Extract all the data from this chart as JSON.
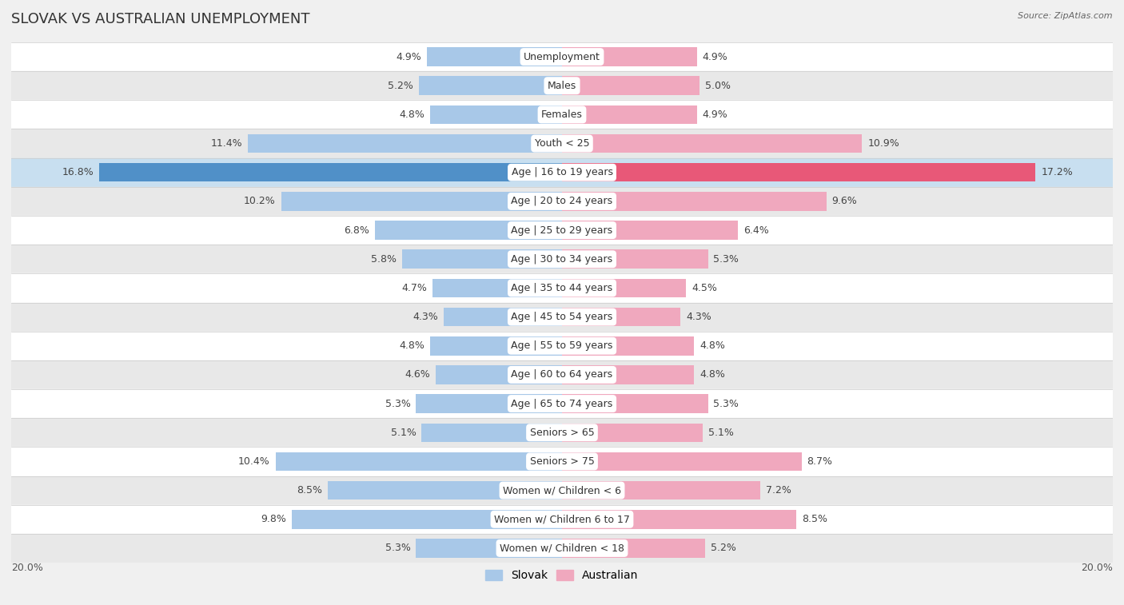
{
  "title": "SLOVAK VS AUSTRALIAN UNEMPLOYMENT",
  "source": "Source: ZipAtlas.com",
  "categories": [
    "Unemployment",
    "Males",
    "Females",
    "Youth < 25",
    "Age | 16 to 19 years",
    "Age | 20 to 24 years",
    "Age | 25 to 29 years",
    "Age | 30 to 34 years",
    "Age | 35 to 44 years",
    "Age | 45 to 54 years",
    "Age | 55 to 59 years",
    "Age | 60 to 64 years",
    "Age | 65 to 74 years",
    "Seniors > 65",
    "Seniors > 75",
    "Women w/ Children < 6",
    "Women w/ Children 6 to 17",
    "Women w/ Children < 18"
  ],
  "slovak_values": [
    4.9,
    5.2,
    4.8,
    11.4,
    16.8,
    10.2,
    6.8,
    5.8,
    4.7,
    4.3,
    4.8,
    4.6,
    5.3,
    5.1,
    10.4,
    8.5,
    9.8,
    5.3
  ],
  "australian_values": [
    4.9,
    5.0,
    4.9,
    10.9,
    17.2,
    9.6,
    6.4,
    5.3,
    4.5,
    4.3,
    4.8,
    4.8,
    5.3,
    5.1,
    8.7,
    7.2,
    8.5,
    5.2
  ],
  "slovak_color": "#a8c8e8",
  "australian_color": "#f0a8be",
  "highlight_slovak_color": "#5090c8",
  "highlight_australian_color": "#e85878",
  "highlight_row": 4,
  "background_color": "#f0f0f0",
  "row_bg_light": "#ffffff",
  "row_bg_dark": "#e8e8e8",
  "row_bg_highlight": "#c8dff0",
  "xlim": 20.0,
  "bar_height": 0.65,
  "title_fontsize": 13,
  "label_fontsize": 9,
  "value_fontsize": 9,
  "legend_slovak": "Slovak",
  "legend_australian": "Australian"
}
